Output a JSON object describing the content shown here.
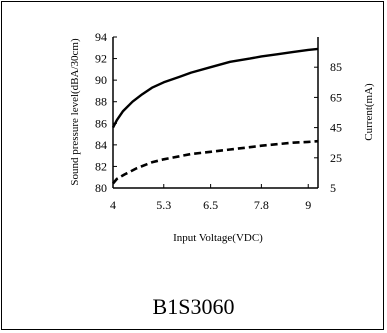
{
  "caption": "B1S3060",
  "chart_data": {
    "type": "line",
    "xlabel": "Input Voltage(VDC)",
    "ylabel_left": "Sound pressure level(dBA/30cm)",
    "ylabel_right": "Current(mA)",
    "x_ticks": [
      "4",
      "5.3",
      "6.5",
      "7.8",
      "9"
    ],
    "y_left_ticks": [
      "80",
      "82",
      "84",
      "86",
      "88",
      "90",
      "92",
      "94"
    ],
    "y_right_ticks": [
      "5",
      "25",
      "45",
      "65",
      "85"
    ],
    "xlim": [
      4,
      9.25
    ],
    "ylim_left": [
      80,
      94
    ],
    "ylim_right": [
      5,
      105
    ],
    "series": [
      {
        "axis": "left",
        "style": "solid",
        "x": [
          4.0,
          4.1,
          4.25,
          4.5,
          4.75,
          5.0,
          5.3,
          5.7,
          6.0,
          6.5,
          7.0,
          7.5,
          7.8,
          8.2,
          8.6,
          9.0,
          9.25
        ],
        "y": [
          85.6,
          86.3,
          87.1,
          88.0,
          88.7,
          89.3,
          89.8,
          90.3,
          90.7,
          91.2,
          91.7,
          92.0,
          92.2,
          92.4,
          92.6,
          92.8,
          92.9
        ]
      },
      {
        "axis": "right",
        "style": "dashed",
        "x": [
          4.0,
          4.1,
          4.3,
          4.6,
          5.0,
          5.3,
          5.7,
          6.0,
          6.5,
          7.0,
          7.5,
          7.8,
          8.2,
          8.6,
          9.0,
          9.25
        ],
        "y": [
          8.0,
          11.0,
          14.0,
          18.0,
          22.0,
          24.0,
          26.0,
          27.5,
          29.0,
          30.5,
          32.0,
          33.0,
          34.0,
          35.0,
          35.5,
          36.0
        ]
      }
    ]
  }
}
